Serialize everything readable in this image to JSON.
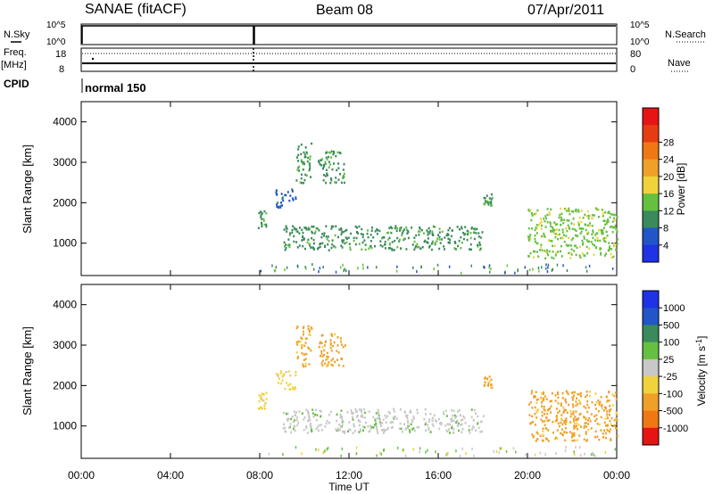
{
  "header": {
    "title": "SANAE (fitACF)",
    "beam": "Beam 08",
    "date": "07/Apr/2011"
  },
  "strip_labels": {
    "nsky": "N.Sky",
    "nsky_ticks": [
      "10^5",
      "10^0"
    ],
    "nsearch": "N.Search",
    "nsearch_ticks": [
      "10^5",
      "10^0"
    ],
    "freq": "Freq.",
    "freq_unit": "[MHz]",
    "freq_ticks": [
      "18",
      "8"
    ],
    "nave": "Nave",
    "nave_ticks": [
      "80",
      "0"
    ],
    "cpid": "CPID",
    "cpid_value": "normal 150"
  },
  "chart_data": [
    {
      "type": "heatmap",
      "panel": "power",
      "ylabel": "Slant Range [km]",
      "xlabel": "",
      "ylim": [
        200,
        4500
      ],
      "yticks": [
        "1000",
        "2000",
        "3000",
        "4000"
      ],
      "colorbar": {
        "label": "Power [dB]",
        "ticks": [
          "4",
          "8",
          "12",
          "16",
          "20",
          "24",
          "28"
        ],
        "colors": [
          "#1e32e6",
          "#2255c8",
          "#3a8a5c",
          "#66c040",
          "#f0d23c",
          "#f0a028",
          "#f07814",
          "#e63c14",
          "#e61414"
        ]
      },
      "regions": [
        {
          "x": [
            7.9,
            8.3
          ],
          "y": [
            1400,
            1850
          ],
          "value": 8
        },
        {
          "x": [
            8.7,
            9.6
          ],
          "y": [
            1900,
            2400
          ],
          "value": 6
        },
        {
          "x": [
            9.6,
            10.3
          ],
          "y": [
            2500,
            3500
          ],
          "value": 8
        },
        {
          "x": [
            10.6,
            11.8
          ],
          "y": [
            2500,
            3300
          ],
          "value": 10
        },
        {
          "x": [
            9.0,
            18.0
          ],
          "y": [
            850,
            1450
          ],
          "value": 10
        },
        {
          "x": [
            18.0,
            18.4
          ],
          "y": [
            1950,
            2250
          ],
          "value": 8
        },
        {
          "x": [
            20.0,
            24.0
          ],
          "y": [
            650,
            1900
          ],
          "value": 14
        }
      ]
    },
    {
      "type": "heatmap",
      "panel": "velocity",
      "ylabel": "Slant Range [km]",
      "xlabel": "Time UT",
      "ylim": [
        200,
        4500
      ],
      "yticks": [
        "1000",
        "2000",
        "3000",
        "4000"
      ],
      "xticks": [
        "00:00",
        "04:00",
        "08:00",
        "12:00",
        "16:00",
        "20:00",
        "00:00"
      ],
      "colorbar": {
        "label": "Velocity [m s^-1]",
        "ticks": [
          "1000",
          "500",
          "100",
          "25",
          "-25",
          "-100",
          "-500",
          "-1000"
        ],
        "colors": [
          "#1e32e6",
          "#2255c8",
          "#3a8a5c",
          "#66c040",
          "#c8c8c8",
          "#f0d23c",
          "#f0a028",
          "#f07814",
          "#e61414"
        ]
      },
      "regions": [
        {
          "x": [
            7.9,
            8.3
          ],
          "y": [
            1400,
            1850
          ],
          "value": -100
        },
        {
          "x": [
            8.7,
            9.6
          ],
          "y": [
            1900,
            2400
          ],
          "value": -100
        },
        {
          "x": [
            9.6,
            10.3
          ],
          "y": [
            2500,
            3500
          ],
          "value": -500
        },
        {
          "x": [
            10.6,
            11.8
          ],
          "y": [
            2500,
            3300
          ],
          "value": -500
        },
        {
          "x": [
            9.0,
            18.0
          ],
          "y": [
            850,
            1450
          ],
          "value": 0
        },
        {
          "x": [
            18.0,
            18.4
          ],
          "y": [
            1950,
            2250
          ],
          "value": -500
        },
        {
          "x": [
            20.0,
            24.0
          ],
          "y": [
            650,
            1900
          ],
          "value": -500
        }
      ]
    }
  ]
}
